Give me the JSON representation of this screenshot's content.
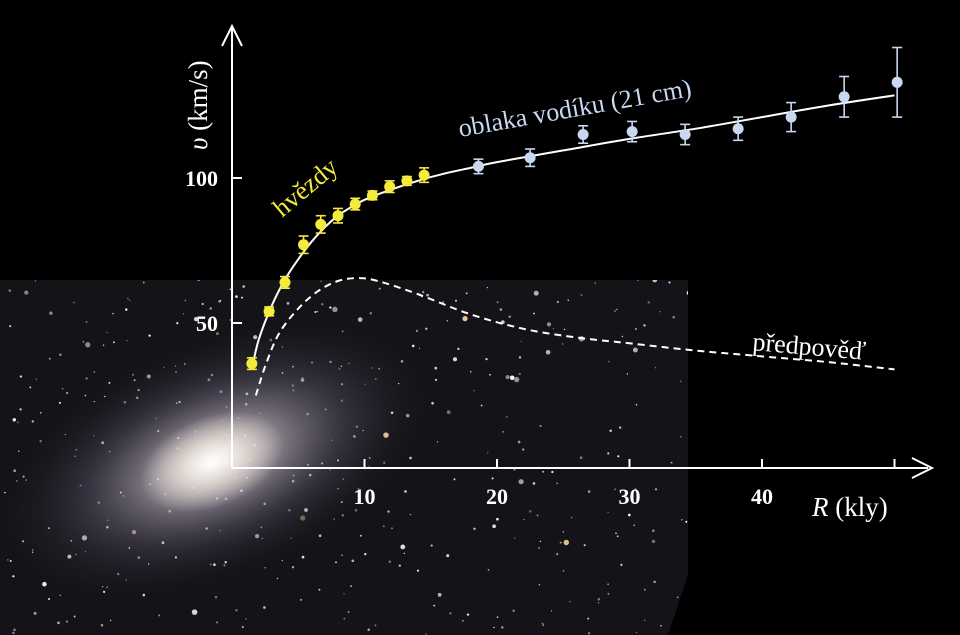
{
  "chart_data": {
    "type": "scatter",
    "title": "",
    "xlabel": {
      "symbol": "R",
      "unit": "(kly)"
    },
    "ylabel": {
      "symbol": "υ",
      "unit": "(km/s)"
    },
    "xlim": [
      0,
      52
    ],
    "ylim": [
      0,
      150
    ],
    "x_ticks": [
      10,
      20,
      30,
      40,
      50
    ],
    "x_tick_labels": [
      "10",
      "20",
      "30",
      "40",
      ""
    ],
    "y_ticks": [
      50,
      100
    ],
    "y_tick_labels": [
      "50",
      "100"
    ],
    "grid": false,
    "series": [
      {
        "name": "hvězdy",
        "color": "#f5eb3c",
        "points": [
          {
            "x": 1.5,
            "y": 36,
            "err": 2
          },
          {
            "x": 2.8,
            "y": 54,
            "err": 1.5
          },
          {
            "x": 4.0,
            "y": 64,
            "err": 2
          },
          {
            "x": 5.4,
            "y": 77,
            "err": 3
          },
          {
            "x": 6.7,
            "y": 84,
            "err": 3
          },
          {
            "x": 8.0,
            "y": 87,
            "err": 2.5
          },
          {
            "x": 9.3,
            "y": 91,
            "err": 2
          },
          {
            "x": 10.6,
            "y": 94,
            "err": 1.5
          },
          {
            "x": 11.9,
            "y": 97,
            "err": 2
          },
          {
            "x": 13.2,
            "y": 99,
            "err": 1.5
          },
          {
            "x": 14.5,
            "y": 101,
            "err": 2.5
          }
        ]
      },
      {
        "name": "oblaka vodíku (21 cm)",
        "color": "#c8d8f0",
        "points": [
          {
            "x": 18.6,
            "y": 104,
            "err": 2.5
          },
          {
            "x": 22.5,
            "y": 107,
            "err": 3
          },
          {
            "x": 26.5,
            "y": 115,
            "err": 3
          },
          {
            "x": 30.2,
            "y": 116,
            "err": 3.5
          },
          {
            "x": 34.2,
            "y": 115,
            "err": 3.5
          },
          {
            "x": 38.2,
            "y": 117,
            "err": 4
          },
          {
            "x": 42.2,
            "y": 121,
            "err": 5
          },
          {
            "x": 46.2,
            "y": 128,
            "err": 7
          },
          {
            "x": 50.2,
            "y": 133,
            "err": 12
          }
        ]
      }
    ],
    "fit_curve": [
      [
        1.5,
        34
      ],
      [
        2,
        44
      ],
      [
        3,
        56
      ],
      [
        4,
        65
      ],
      [
        5,
        72
      ],
      [
        6,
        78
      ],
      [
        7,
        83
      ],
      [
        8,
        87
      ],
      [
        9,
        90
      ],
      [
        10,
        92.5
      ],
      [
        12,
        96
      ],
      [
        14,
        99
      ],
      [
        16,
        101.5
      ],
      [
        18,
        103.5
      ],
      [
        20,
        105.5
      ],
      [
        25,
        109.5
      ],
      [
        30,
        113.5
      ],
      [
        35,
        117
      ],
      [
        40,
        121
      ],
      [
        45,
        125
      ],
      [
        50,
        128.5
      ]
    ],
    "prediction_curve": [
      [
        1.8,
        25
      ],
      [
        2.5,
        35
      ],
      [
        3.5,
        46
      ],
      [
        5,
        55
      ],
      [
        6.5,
        61
      ],
      [
        8,
        64.5
      ],
      [
        9.5,
        65.5
      ],
      [
        11,
        64.5
      ],
      [
        14,
        60
      ],
      [
        18,
        53
      ],
      [
        22,
        48
      ],
      [
        26,
        45
      ],
      [
        30,
        43
      ],
      [
        35,
        40.5
      ],
      [
        40,
        38.5
      ],
      [
        45,
        36.5
      ],
      [
        50,
        34
      ]
    ],
    "annotations": {
      "stars_label": "hvězdy",
      "hydrogen_label": "oblaka vodíku (21 cm)",
      "prediction_label": "předpověď"
    },
    "colors": {
      "stars": "#f5eb3c",
      "hydrogen": "#c8d8f0",
      "curve": "#ffffff",
      "background": "#000000"
    }
  }
}
